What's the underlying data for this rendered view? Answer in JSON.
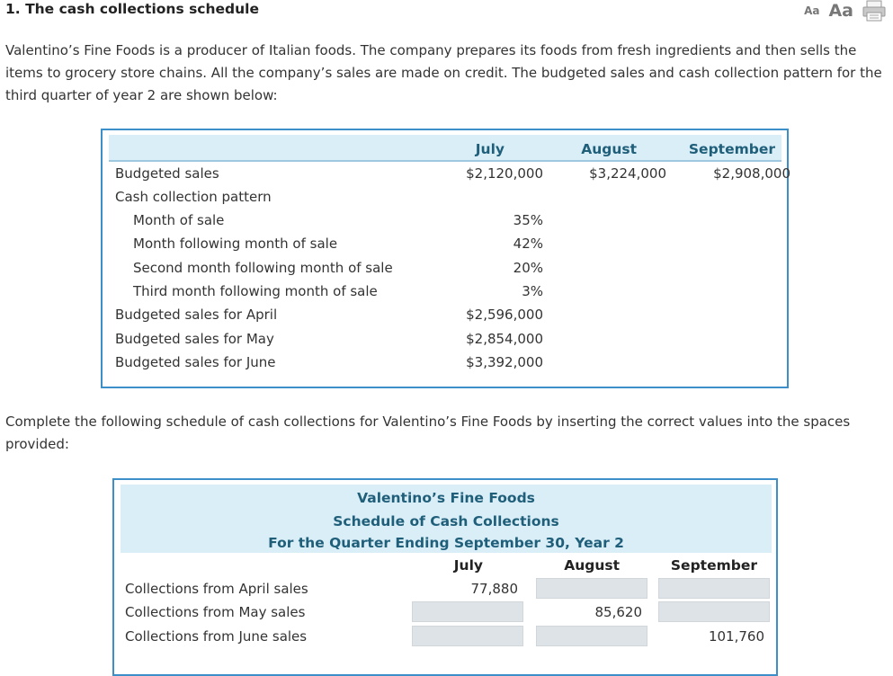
{
  "question": {
    "title": "1. The cash collections schedule",
    "font_small": "Aa",
    "font_large": "Aa",
    "intro": "Valentino’s Fine Foods is a producer of Italian foods. The company prepares its foods from fresh ingredients and then sells the items to grocery store chains. All the company’s sales are made on credit. The budgeted sales and cash collection pattern for the third quarter of year 2 are shown below:",
    "instruction": "Complete the following schedule of cash collections for Valentino’s Fine Foods by inserting the correct values into the spaces provided:"
  },
  "given": {
    "months": [
      "July",
      "August",
      "September"
    ],
    "rows": [
      {
        "label": "Budgeted sales",
        "values": [
          "$2,120,000",
          "$3,224,000",
          "$2,908,000"
        ]
      },
      {
        "label": "Cash collection pattern",
        "values": [
          "",
          "",
          ""
        ]
      },
      {
        "label": "Month of sale",
        "values": [
          "35%",
          "",
          ""
        ]
      },
      {
        "label": "Month following month of sale",
        "values": [
          "42%",
          "",
          ""
        ]
      },
      {
        "label": "Second month following month of sale",
        "values": [
          "20%",
          "",
          ""
        ]
      },
      {
        "label": "Third month following month of sale",
        "values": [
          "3%",
          "",
          ""
        ]
      },
      {
        "label": "Budgeted sales for April",
        "values": [
          "$2,596,000",
          "",
          ""
        ]
      },
      {
        "label": "Budgeted sales for May",
        "values": [
          "$2,854,000",
          "",
          ""
        ]
      },
      {
        "label": "Budgeted sales for June",
        "values": [
          "$3,392,000",
          "",
          ""
        ]
      }
    ]
  },
  "schedule": {
    "company": "Valentino’s Fine Foods",
    "title": "Schedule of Cash Collections",
    "period": "For the Quarter Ending September 30, Year 2",
    "columns": [
      "July",
      "August",
      "September"
    ],
    "rows": [
      {
        "label": "Collections from April sales",
        "values": [
          "77,880",
          "",
          ""
        ]
      },
      {
        "label": "Collections from May sales",
        "values": [
          "",
          "85,620",
          ""
        ]
      },
      {
        "label": "Collections from June sales",
        "values": [
          "",
          "",
          "101,760"
        ]
      }
    ]
  }
}
